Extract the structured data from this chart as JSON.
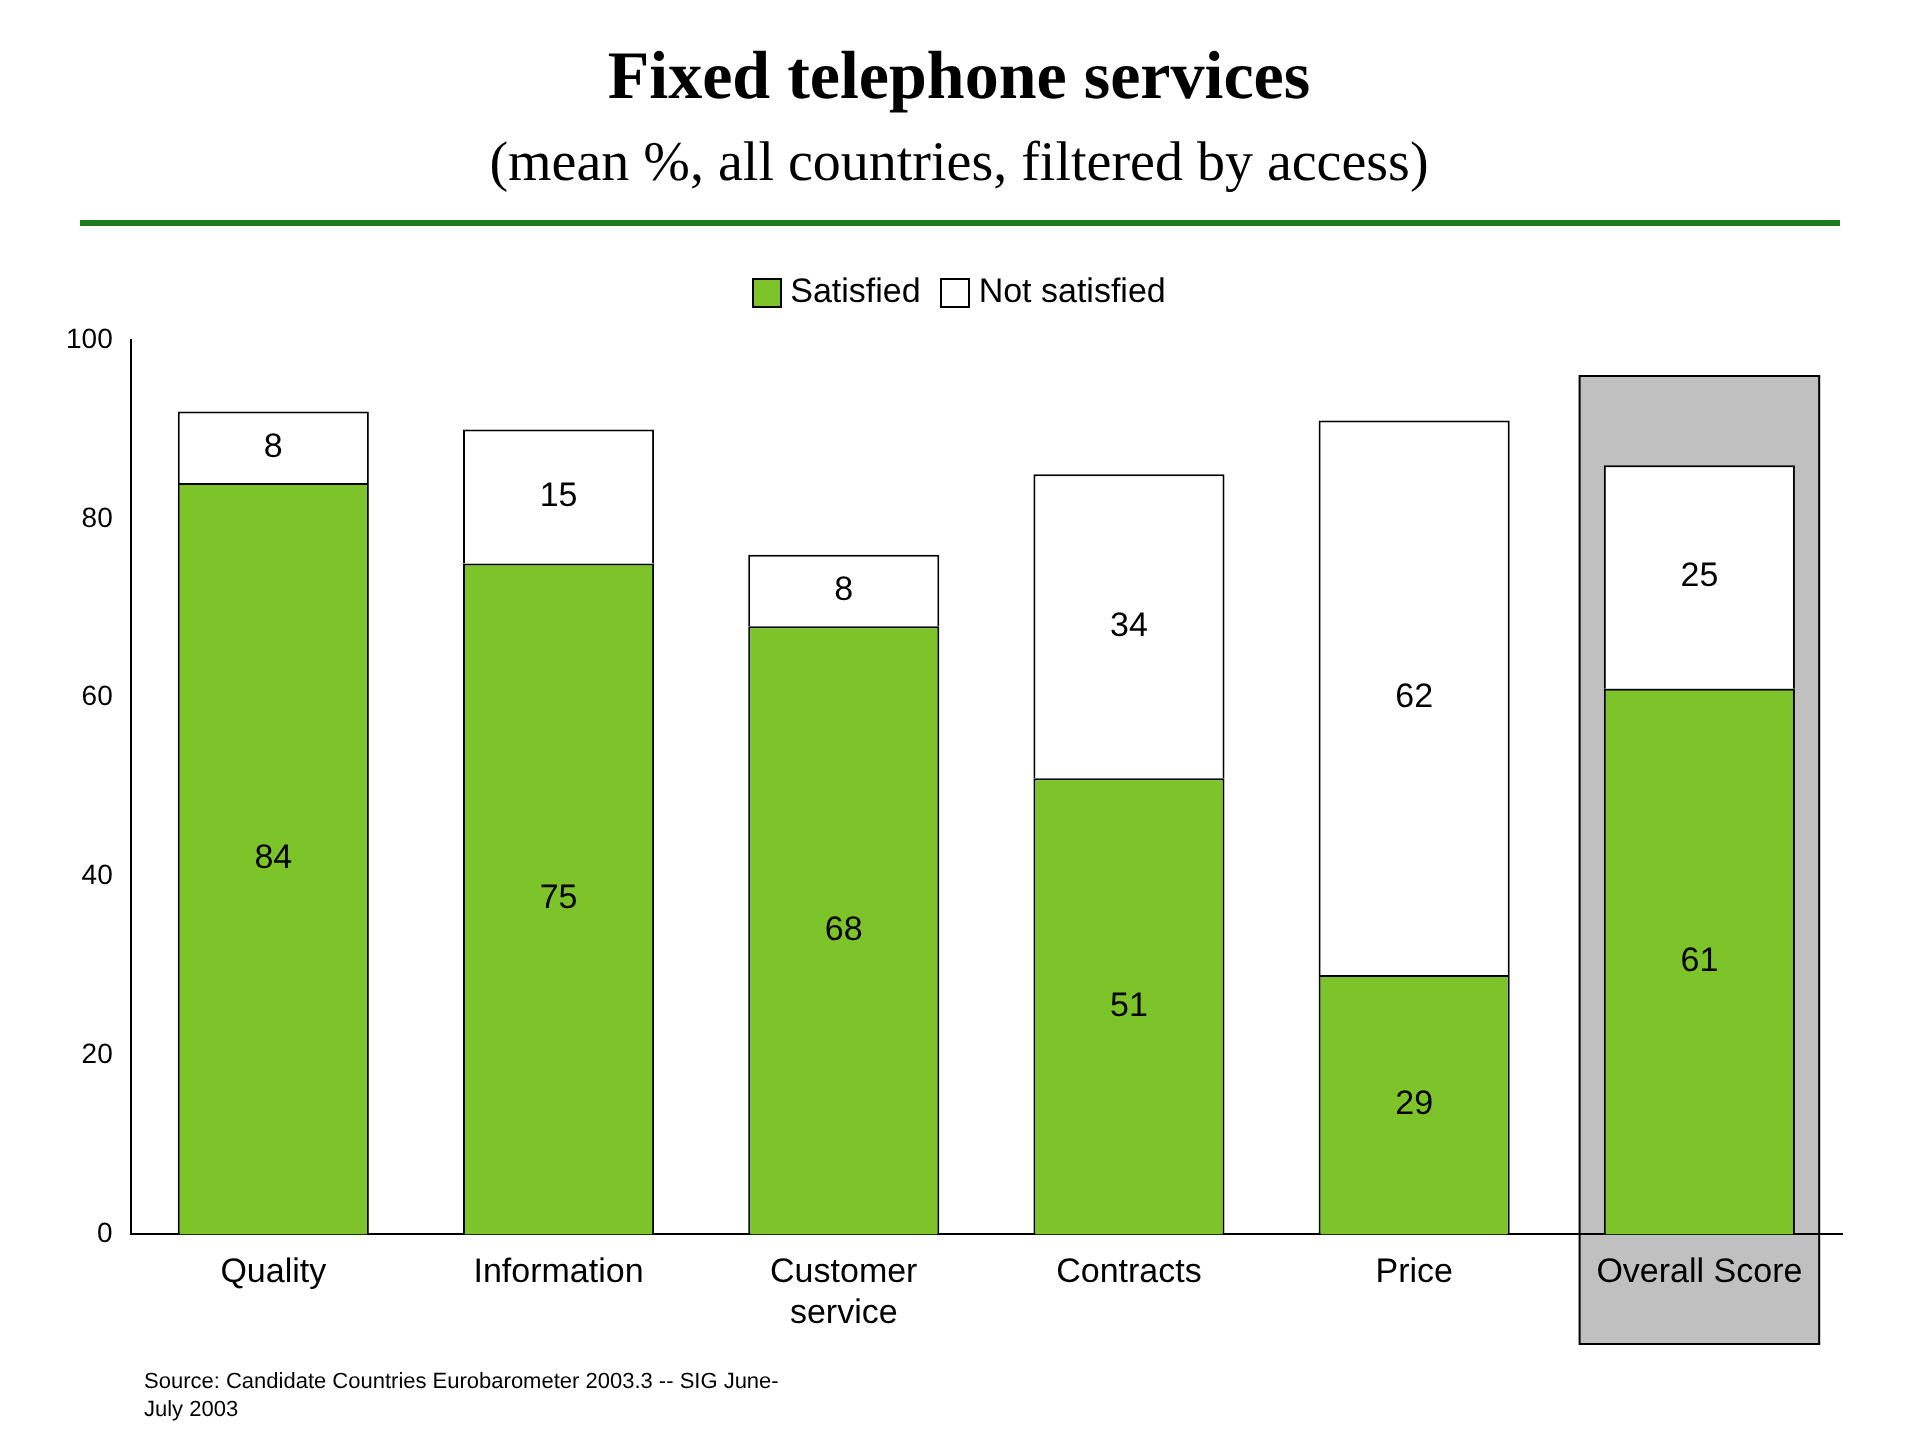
{
  "chart_data": {
    "type": "bar",
    "title": "Fixed telephone services",
    "subtitle": "(mean %, all countries, filtered by access)",
    "categories": [
      "Quality",
      "Information",
      "Customer service",
      "Contracts",
      "Price",
      "Overall Score"
    ],
    "series": [
      {
        "name": "Satisfied",
        "color": "#7dc42a",
        "values": [
          84,
          75,
          68,
          51,
          29,
          61
        ]
      },
      {
        "name": "Not satisfied",
        "color": "#ffffff",
        "values": [
          8,
          15,
          8,
          34,
          62,
          25
        ]
      }
    ],
    "stacked": true,
    "data_labels": true,
    "legend": "top",
    "grid": false,
    "ylim": [
      0,
      100
    ],
    "yticks": [
      0,
      20,
      40,
      60,
      80,
      100
    ],
    "bands": [
      {
        "axis": "x",
        "from": "Overall Score",
        "to": "Overall Score",
        "color": "#c0c0c0"
      }
    ],
    "annotations": [
      "Source: Candidate Countries Eurobarometer 2003.3 -- SIG June-July 2003"
    ]
  }
}
